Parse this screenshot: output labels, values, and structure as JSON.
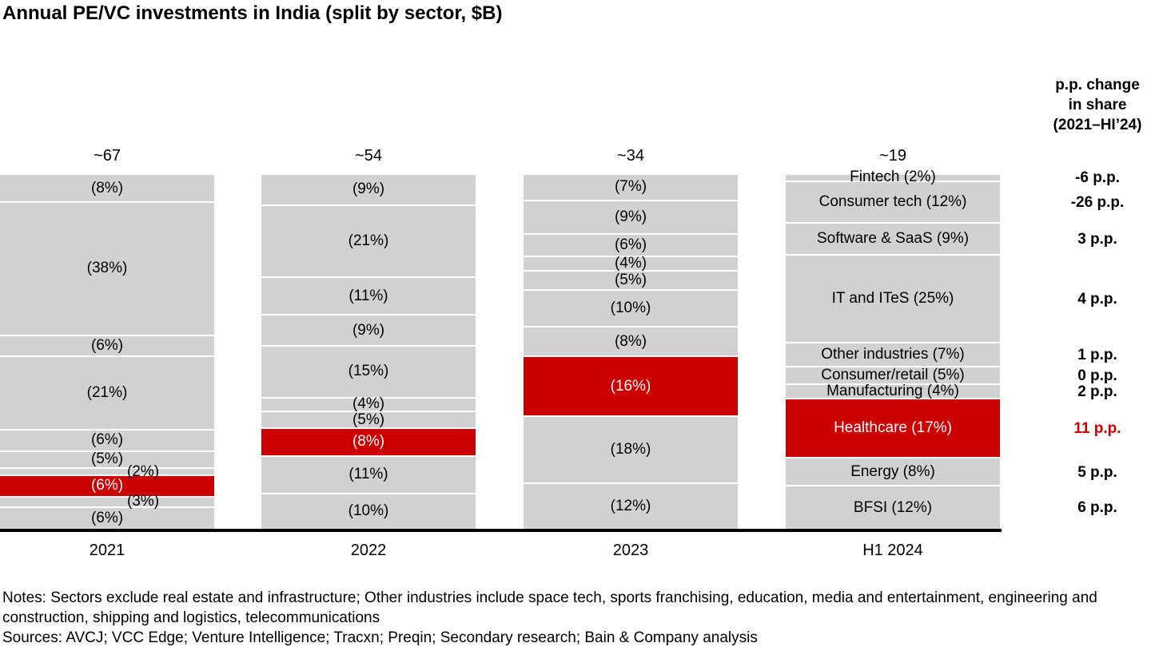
{
  "title": "Annual PE/VC investments in India (split by sector, $B)",
  "change_column": {
    "header_lines": [
      "p.p. change",
      "in share",
      "(2021–HI’24)"
    ]
  },
  "notes": {
    "notes_text": "Notes: Sectors exclude real estate and infrastructure; Other industries include space tech, sports franchising, education, media and entertainment, engineering and construction, shipping and logistics, telecommunications",
    "sources_text": "Sources: AVCJ; VCC Edge; Venture Intelligence; Tracxn; Preqin; Secondary research; Bain & Company analysis"
  },
  "colors": {
    "segment_gray": "#d1d1d1",
    "highlight_red": "#cc0000",
    "axis_black": "#000000"
  },
  "chart_data": {
    "type": "bar",
    "variant": "100%-stacked-vertical",
    "title": "Annual PE/VC investments in India (split by sector, $B)",
    "categories": [
      "2021",
      "2022",
      "2023",
      "H1 2024"
    ],
    "totals": [
      "~67",
      "~54",
      "~34",
      "~19"
    ],
    "xlabel": "",
    "ylabel": "",
    "legend": "none; sector names labeled inside H1 2024 bar",
    "grid": false,
    "sectors": [
      {
        "name": "Fintech",
        "values": [
          8,
          9,
          7,
          2
        ],
        "change": "-6 p.p."
      },
      {
        "name": "Consumer tech",
        "values": [
          38,
          21,
          9,
          12
        ],
        "change": "-26 p.p."
      },
      {
        "name": "Software & SaaS",
        "values": [
          6,
          11,
          6,
          9
        ],
        "change": "3 p.p."
      },
      {
        "name": "IT and ITeS",
        "values": [
          21,
          9,
          4,
          25
        ],
        "change": "4 p.p."
      },
      {
        "name": "Other industries",
        "values": [
          6,
          15,
          5,
          7
        ],
        "change": "1 p.p."
      },
      {
        "name": "Consumer/retail",
        "values": [
          5,
          4,
          10,
          5
        ],
        "change": "0 p.p."
      },
      {
        "name": "Manufacturing",
        "values": [
          2,
          5,
          8,
          4
        ],
        "change": "2 p.p.",
        "label_dx": [
          45,
          0,
          0,
          0
        ]
      },
      {
        "name": "Healthcare",
        "values": [
          6,
          8,
          16,
          17
        ],
        "change": "11 p.p.",
        "highlight": true
      },
      {
        "name": "Energy",
        "values": [
          3,
          11,
          18,
          8
        ],
        "change": "5 p.p.",
        "label_dx": [
          45,
          0,
          0,
          0
        ]
      },
      {
        "name": "BFSI",
        "values": [
          6,
          10,
          12,
          12
        ],
        "change": "6 p.p."
      }
    ]
  }
}
